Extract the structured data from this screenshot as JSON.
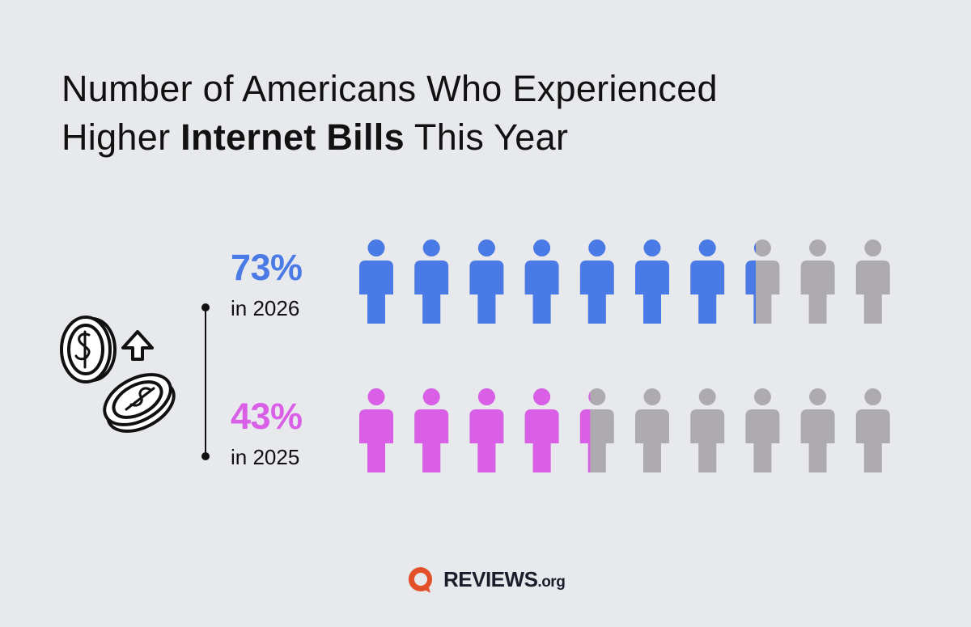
{
  "title": {
    "line1": "Number of Americans Who Experienced",
    "line2_prefix": "Higher ",
    "line2_bold": "Internet Bills",
    "line2_suffix": " This Year"
  },
  "colors": {
    "background": "#e8e9ed",
    "series_2026": "#4a7ae6",
    "series_2025": "#d95fe6",
    "inactive": "#aeabb0",
    "logo_accent": "#e2512a"
  },
  "illustration": {
    "icon": "rising-coins-icon"
  },
  "logo": {
    "brand": "REVIEWS",
    "suffix": ".org"
  },
  "chart_data": {
    "type": "pictogram",
    "title": "Number of Americans Who Experienced Higher Internet Bills This Year",
    "icons_per_row": 10,
    "series": [
      {
        "name": "2026",
        "value_label": "73%",
        "year_label": "in 2026",
        "value": 73,
        "color": "#4a7ae6"
      },
      {
        "name": "2025",
        "value_label": "43%",
        "year_label": "in 2025",
        "value": 43,
        "color": "#d95fe6"
      }
    ]
  }
}
